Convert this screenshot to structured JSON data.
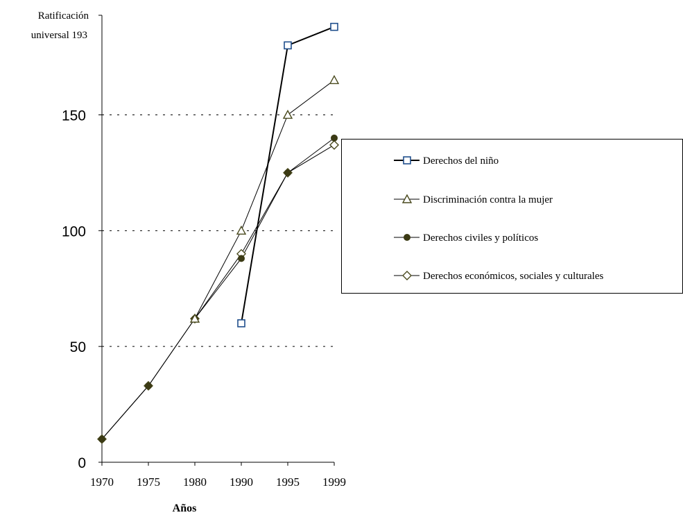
{
  "chart_data": {
    "type": "line",
    "top_label_line1": "Ratificación",
    "top_label_line2": "universal  193",
    "xlabel": "Años",
    "ylabel": "",
    "categories": [
      "1970",
      "1975",
      "1980",
      "1990",
      "1995",
      "1999"
    ],
    "x": [
      1970,
      1975,
      1980,
      1990,
      1995,
      1999
    ],
    "ylim": [
      0,
      193
    ],
    "yticks": [
      0,
      50,
      100,
      150
    ],
    "ytick_labels": [
      "0",
      "50",
      "100",
      "150"
    ],
    "gridlines": [
      50,
      100,
      150
    ],
    "grid": "dotted horizontal at 50, 100, 150",
    "legend_position": "right",
    "series": [
      {
        "name": "Derechos del niño",
        "marker": "open-square",
        "color": "#1f4e8c",
        "line": "#000000",
        "width": 2,
        "values": [
          null,
          null,
          null,
          60,
          180,
          188
        ]
      },
      {
        "name": "Discriminación contra la mujer",
        "marker": "open-triangle",
        "color": "#4a4a1e",
        "line": "#000000",
        "width": 1,
        "values": [
          null,
          null,
          62,
          100,
          150,
          165
        ]
      },
      {
        "name": "Derechos civiles y políticos",
        "marker": "filled-circle",
        "color": "#3b3a14",
        "line": "#000000",
        "width": 1,
        "values": [
          10,
          33,
          62,
          88,
          125,
          140
        ]
      },
      {
        "name": "Derechos económicos, sociales y culturales",
        "marker": "open-diamond",
        "color": "#4a4a1e",
        "line": "#000000",
        "width": 1,
        "values": [
          10,
          33,
          62,
          90,
          125,
          137
        ]
      }
    ]
  }
}
